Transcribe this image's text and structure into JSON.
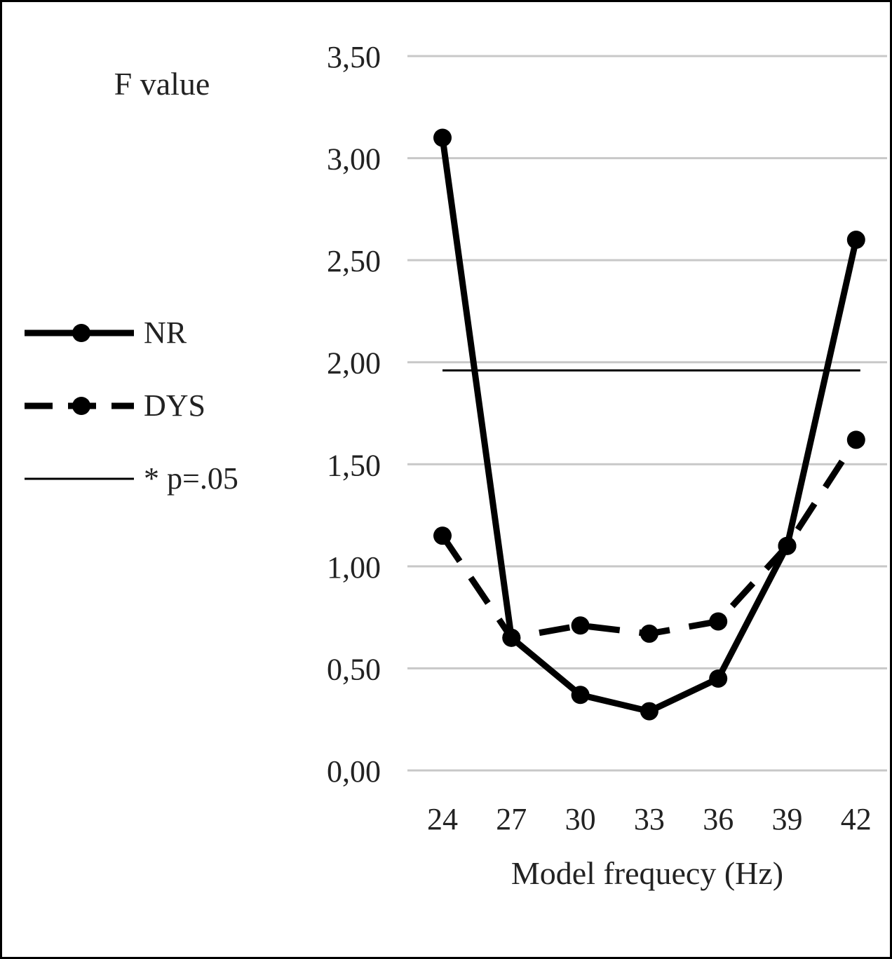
{
  "chart_data": {
    "type": "line",
    "ylabel": "F value",
    "xlabel": "Model frequecy (Hz)",
    "categories": [
      "24",
      "27",
      "30",
      "33",
      "36",
      "39",
      "42"
    ],
    "y_ticks": [
      "0,00",
      "0,50",
      "1,00",
      "1,50",
      "2,00",
      "2,50",
      "3,00",
      "3,50"
    ],
    "ylim": [
      0,
      3.5
    ],
    "grid": true,
    "legend_position": "left",
    "series": [
      {
        "name": "NR",
        "style": "solid",
        "color": "#000000",
        "values": [
          3.1,
          0.65,
          0.37,
          0.29,
          0.45,
          1.1,
          2.6
        ]
      },
      {
        "name": "DYS",
        "style": "dashed",
        "color": "#000000",
        "values": [
          1.15,
          0.65,
          0.71,
          0.67,
          0.73,
          1.1,
          1.62
        ]
      }
    ],
    "reference_line": {
      "name": "* p=.05",
      "value": 1.96,
      "style": "thin-solid",
      "color": "#000000"
    },
    "gridline_color": "#c8c8c8"
  }
}
